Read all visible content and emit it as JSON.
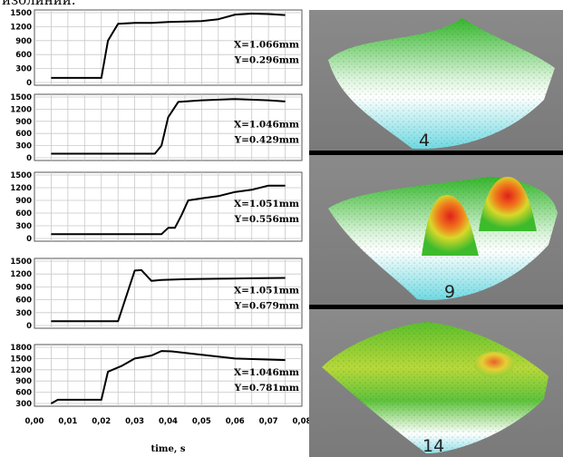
{
  "caption": "изолиний.",
  "chart_data": [
    {
      "type": "line",
      "xlim": [
        0.0,
        0.08
      ],
      "ylim": [
        0,
        1500
      ],
      "yticks": [
        0,
        300,
        600,
        900,
        1200,
        1500
      ],
      "annotation": [
        "X=1.066mm",
        "Y=0.296mm"
      ],
      "series": [
        {
          "x": [
            0.005,
            0.02,
            0.022,
            0.025,
            0.03,
            0.035,
            0.04,
            0.05,
            0.055,
            0.06,
            0.065,
            0.07,
            0.075
          ],
          "y": [
            100,
            100,
            900,
            1260,
            1280,
            1280,
            1300,
            1320,
            1360,
            1460,
            1480,
            1470,
            1450
          ]
        }
      ]
    },
    {
      "type": "line",
      "xlim": [
        0.0,
        0.08
      ],
      "ylim": [
        0,
        1500
      ],
      "yticks": [
        0,
        300,
        600,
        900,
        1200,
        1500
      ],
      "annotation": [
        "X=1.046mm",
        "Y=0.429mm"
      ],
      "series": [
        {
          "x": [
            0.005,
            0.036,
            0.038,
            0.04,
            0.043,
            0.05,
            0.06,
            0.07,
            0.075
          ],
          "y": [
            100,
            100,
            300,
            1000,
            1380,
            1420,
            1450,
            1420,
            1390
          ]
        }
      ]
    },
    {
      "type": "line",
      "xlim": [
        0.0,
        0.08
      ],
      "ylim": [
        0,
        1500
      ],
      "yticks": [
        0,
        300,
        600,
        900,
        1200,
        1500
      ],
      "annotation": [
        "X=1.051mm",
        "Y=0.556mm"
      ],
      "series": [
        {
          "x": [
            0.005,
            0.038,
            0.04,
            0.042,
            0.044,
            0.046,
            0.05,
            0.055,
            0.06,
            0.065,
            0.07,
            0.075
          ],
          "y": [
            100,
            100,
            250,
            250,
            550,
            900,
            950,
            1000,
            1100,
            1150,
            1250,
            1250
          ]
        }
      ]
    },
    {
      "type": "line",
      "xlim": [
        0.0,
        0.08
      ],
      "ylim": [
        0,
        1500
      ],
      "yticks": [
        0,
        300,
        600,
        900,
        1200,
        1500
      ],
      "annotation": [
        "X=1.051mm",
        "Y=0.679mm"
      ],
      "series": [
        {
          "x": [
            0.005,
            0.025,
            0.03,
            0.032,
            0.035,
            0.038,
            0.045,
            0.055,
            0.065,
            0.075
          ],
          "y": [
            100,
            100,
            1280,
            1290,
            1040,
            1060,
            1080,
            1090,
            1100,
            1110
          ]
        }
      ]
    },
    {
      "type": "line",
      "xlim": [
        0.0,
        0.08
      ],
      "ylim": [
        300,
        1800
      ],
      "yticks": [
        300,
        600,
        900,
        1200,
        1500,
        1800
      ],
      "xticks": [
        "0,00",
        "0,01",
        "0,02",
        "0,03",
        "0,04",
        "0,05",
        "0,06",
        "0,07",
        "0,08"
      ],
      "xlabel": "time, s",
      "annotation": [
        "X=1.046mm",
        "Y=0.781mm"
      ],
      "series": [
        {
          "x": [
            0.005,
            0.007,
            0.02,
            0.022,
            0.026,
            0.03,
            0.035,
            0.038,
            0.041,
            0.05,
            0.06,
            0.075
          ],
          "y": [
            300,
            400,
            400,
            1150,
            1300,
            1500,
            1580,
            1700,
            1690,
            1600,
            1500,
            1460
          ]
        }
      ]
    }
  ],
  "panels": [
    {
      "label": "4",
      "top_color": "#2fb52a",
      "bottom_color": "#7ee0e8"
    },
    {
      "label": "9",
      "top_color": "#2fb52a",
      "bottom_color": "#7ee0e8"
    },
    {
      "label": "14",
      "top_color": "#2fb52a",
      "bottom_color": "#7ee0e8"
    }
  ]
}
